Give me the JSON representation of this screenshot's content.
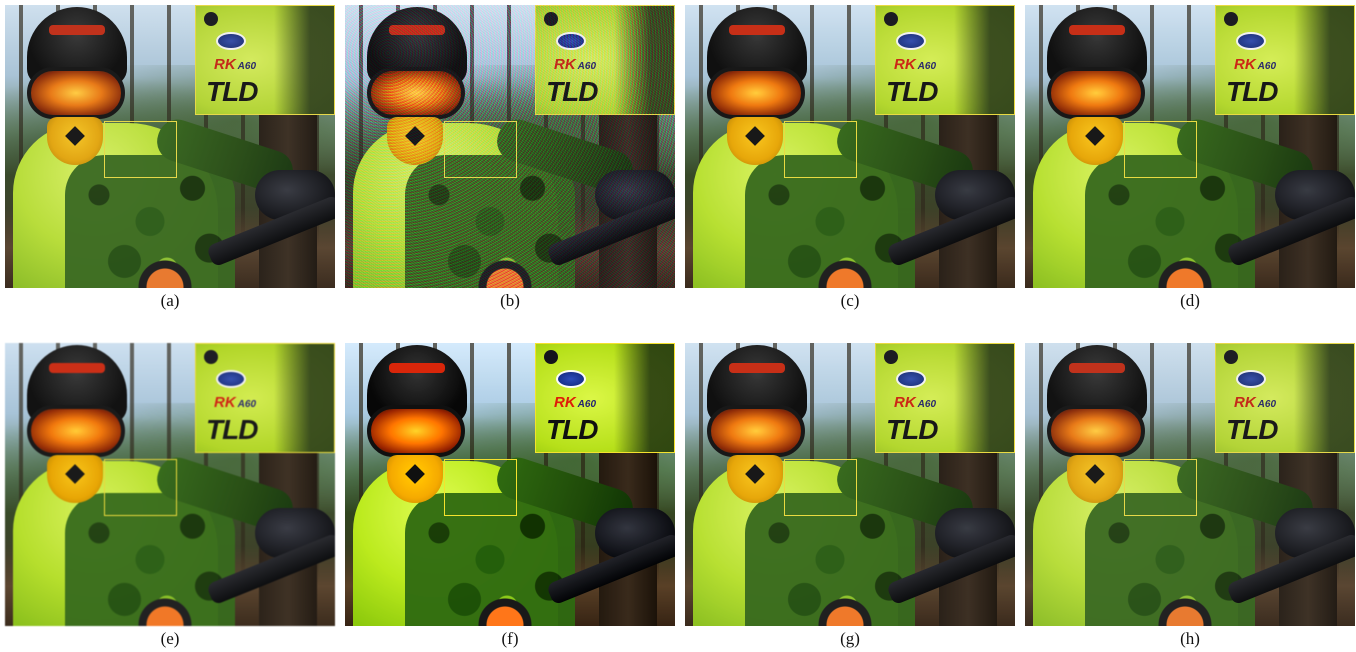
{
  "figure": {
    "panels": [
      {
        "id": "a",
        "caption": "(a)",
        "variant": "clean"
      },
      {
        "id": "b",
        "caption": "(b)",
        "variant": "noisy"
      },
      {
        "id": "c",
        "caption": "(c)",
        "variant": "smooth"
      },
      {
        "id": "d",
        "caption": "(d)",
        "variant": "smooth"
      },
      {
        "id": "e",
        "caption": "(e)",
        "variant": "soft"
      },
      {
        "id": "f",
        "caption": "(f)",
        "variant": "sharp"
      },
      {
        "id": "g",
        "caption": "(g)",
        "variant": "smooth"
      },
      {
        "id": "h",
        "caption": "(h)",
        "variant": "clean"
      }
    ],
    "jersey_logos": {
      "rk": "RK",
      "rk_num": "A60",
      "tld": "TLD"
    },
    "colors": {
      "highlight_box": "#e6d84a",
      "jersey": "#b8dd3b",
      "helmet": "#121212",
      "goggle_lens": "#e87a18",
      "mask": "#f4c528"
    }
  }
}
